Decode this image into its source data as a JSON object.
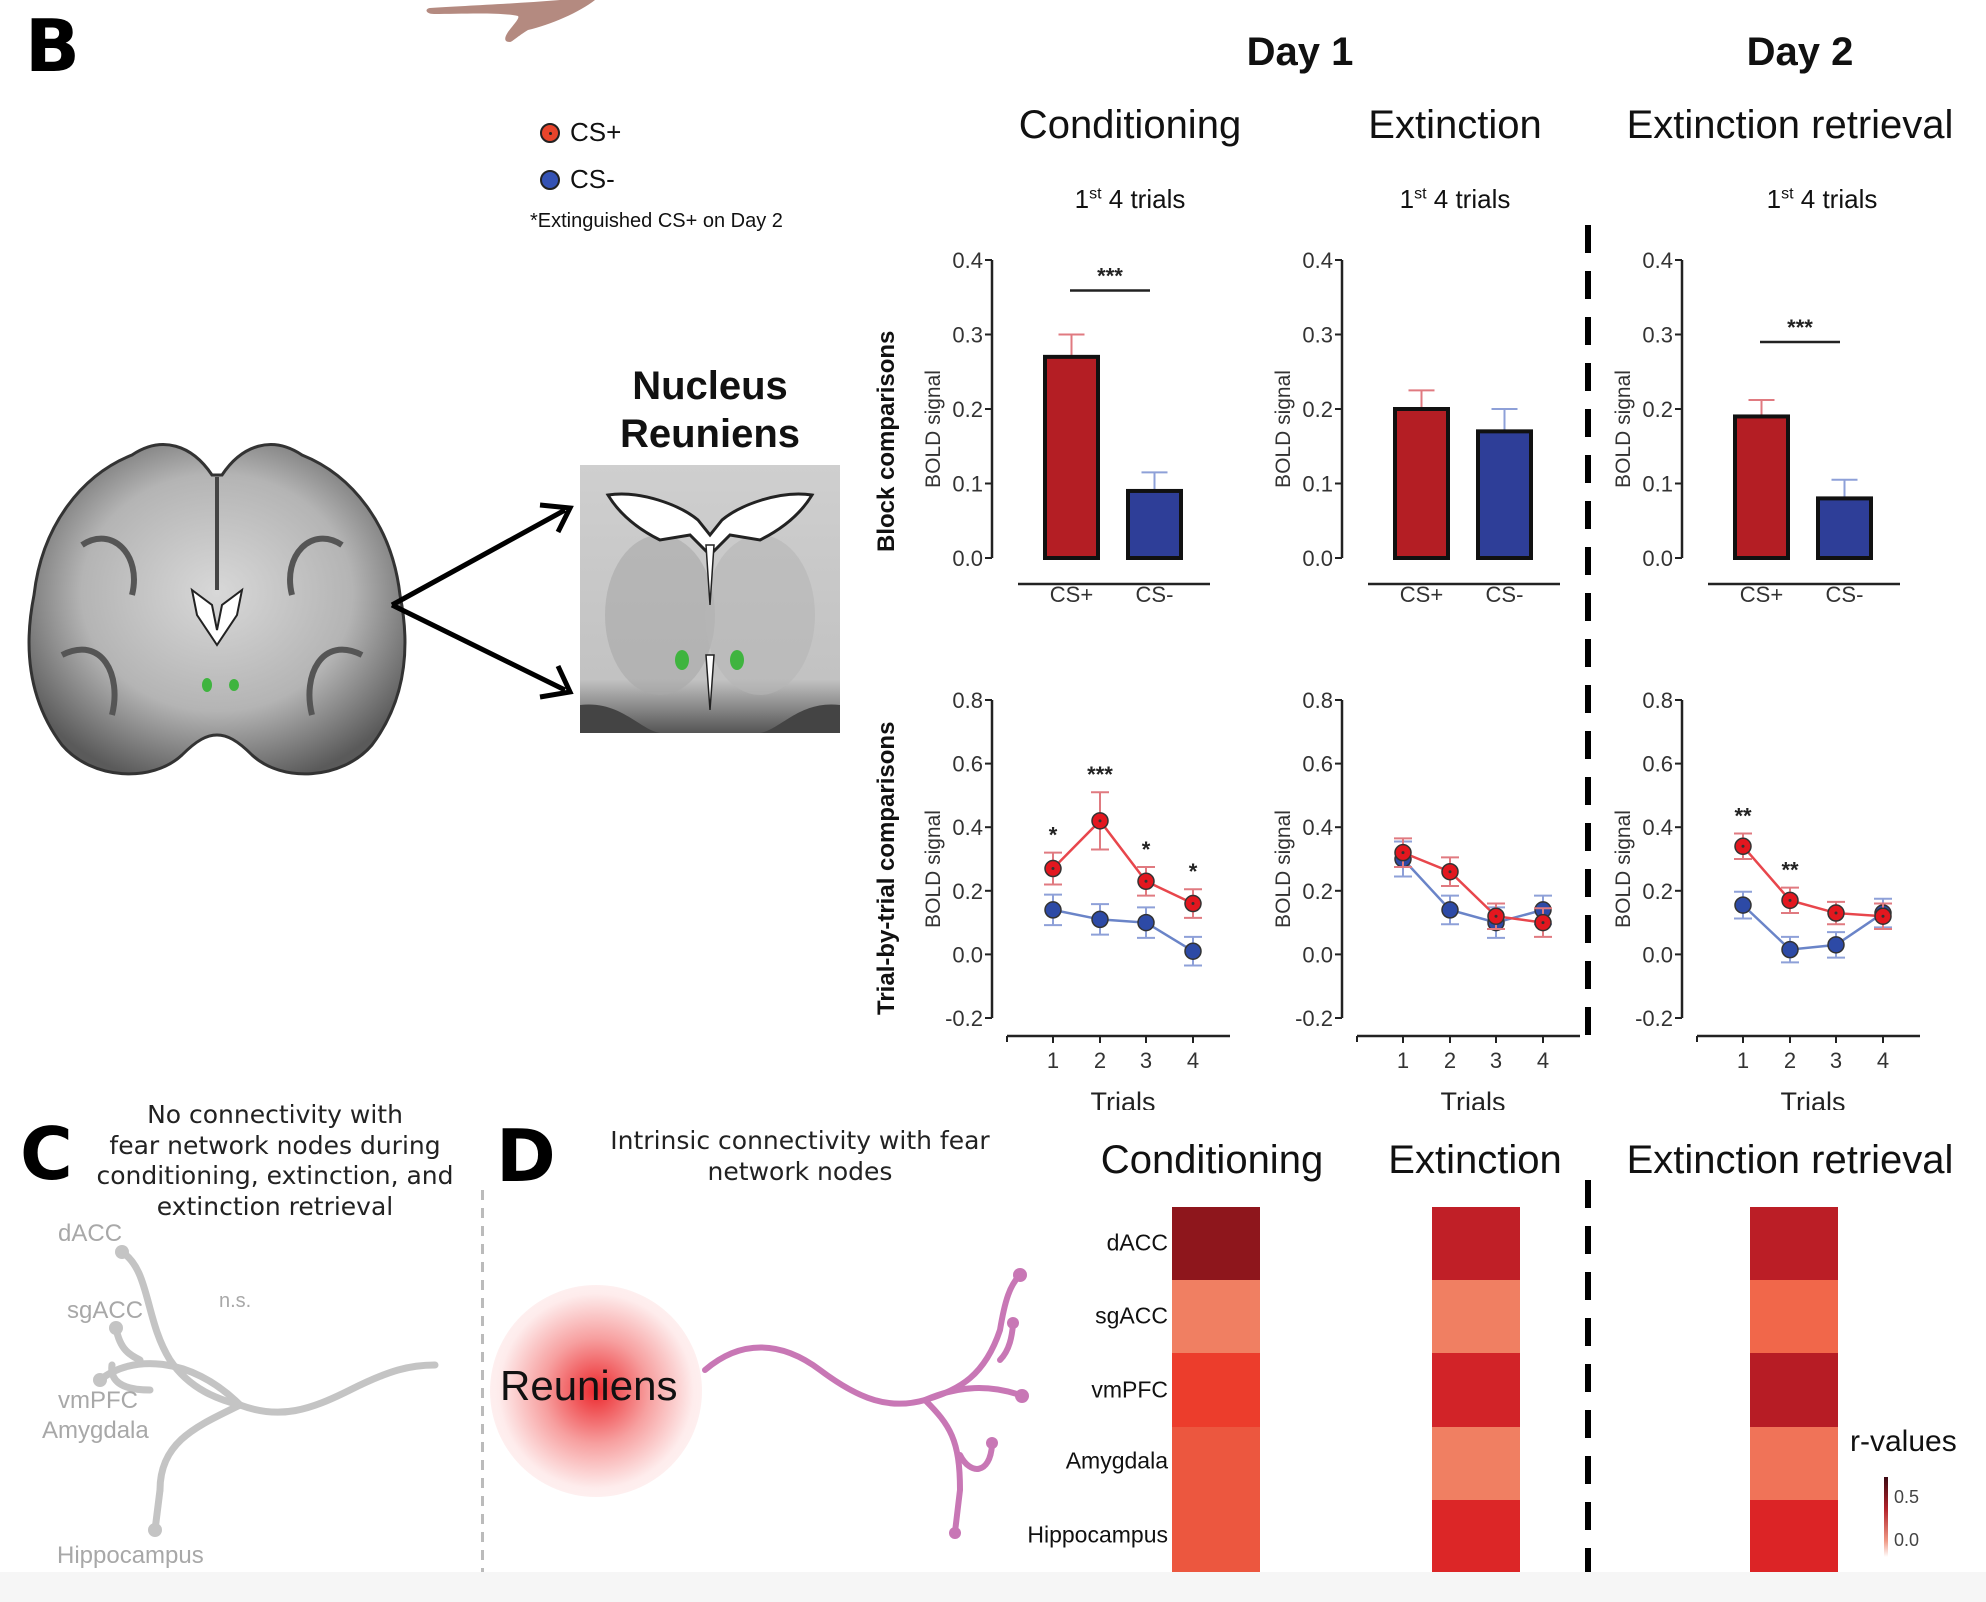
{
  "panel_letters": {
    "b": "B",
    "c": "C",
    "d": "D"
  },
  "header": {
    "day1": "Day 1",
    "day2": "Day 2",
    "phases": [
      "Conditioning",
      "Extinction",
      "Extinction retrieval"
    ],
    "subtitle_sup": "st",
    "subtitle_pre": "1",
    "subtitle_post": " 4 trials"
  },
  "legend": {
    "cs_plus": "CS+",
    "cs_minus": "CS-",
    "note": "*Extinguished CS+ on Day 2",
    "colors": {
      "cs_plus": "#e8242b",
      "cs_minus": "#2f4aa8"
    }
  },
  "brain": {
    "inset_title_line1": "Nucleus",
    "inset_title_line2": "Reuniens"
  },
  "row_labels": {
    "block": "Block comparisons",
    "trial": "Trial-by-trial comparisons"
  },
  "colors": {
    "bar_cs_plus": "#b41e24",
    "bar_cs_minus": "#2e3e98",
    "line_cs_plus": "#e8464c",
    "line_cs_minus": "#6a84c8",
    "pt_cs_plus": "#e3171f",
    "pt_cs_minus": "#2d4aa6",
    "err_cs_plus": "#e07a80",
    "err_cs_minus": "#8ea0d8",
    "connector_purple": "#c877b5",
    "connector_gray": "#c4c4c4"
  },
  "chart_data": [
    {
      "id": "block-conditioning",
      "type": "bar",
      "title": "Conditioning",
      "categories": [
        "CS+",
        "CS-"
      ],
      "values": [
        0.27,
        0.09
      ],
      "errors": [
        0.03,
        0.025
      ],
      "ylabel": "BOLD signal",
      "ylim": [
        0.0,
        0.4
      ],
      "yticks": [
        "0.0",
        "0.1",
        "0.2",
        "0.3",
        "0.4"
      ],
      "yticks_values": [
        0.0,
        0.1,
        0.2,
        0.3,
        0.4
      ],
      "significance": "***"
    },
    {
      "id": "block-extinction",
      "type": "bar",
      "title": "Extinction",
      "categories": [
        "CS+",
        "CS-"
      ],
      "values": [
        0.2,
        0.17
      ],
      "errors": [
        0.025,
        0.03
      ],
      "ylabel": "BOLD signal",
      "ylim": [
        0.0,
        0.4
      ],
      "yticks": [
        "0.0",
        "0.1",
        "0.2",
        "0.3",
        "0.4"
      ],
      "yticks_values": [
        0.0,
        0.1,
        0.2,
        0.3,
        0.4
      ],
      "significance": ""
    },
    {
      "id": "block-retrieval",
      "type": "bar",
      "title": "Extinction retrieval",
      "categories": [
        "CS+",
        "CS-"
      ],
      "values": [
        0.19,
        0.08
      ],
      "errors": [
        0.022,
        0.025
      ],
      "ylabel": "BOLD signal",
      "ylim": [
        0.0,
        0.4
      ],
      "yticks": [
        "0.0",
        "0.1",
        "0.2",
        "0.3",
        "0.4"
      ],
      "yticks_values": [
        0.0,
        0.1,
        0.2,
        0.3,
        0.4
      ],
      "significance": "***"
    },
    {
      "id": "trial-conditioning",
      "type": "line",
      "title": "Conditioning",
      "x": [
        1,
        2,
        3,
        4
      ],
      "xticks": [
        "1",
        "2",
        "3",
        "4"
      ],
      "xlabel": "Trials",
      "ylabel": "BOLD signal",
      "ylim": [
        -0.2,
        0.8
      ],
      "yticks": [
        "-0.2",
        "0.0",
        "0.2",
        "0.4",
        "0.6",
        "0.8"
      ],
      "yticks_values": [
        -0.2,
        0.0,
        0.2,
        0.4,
        0.6,
        0.8
      ],
      "series": [
        {
          "name": "CS+",
          "values": [
            0.27,
            0.42,
            0.23,
            0.16
          ],
          "errors": [
            0.05,
            0.09,
            0.045,
            0.045
          ]
        },
        {
          "name": "CS-",
          "values": [
            0.14,
            0.11,
            0.1,
            0.01
          ],
          "errors": [
            0.048,
            0.048,
            0.048,
            0.045
          ]
        }
      ],
      "annotations": [
        "*",
        "***",
        "*",
        "*"
      ]
    },
    {
      "id": "trial-extinction",
      "type": "line",
      "title": "Extinction",
      "x": [
        1,
        2,
        3,
        4
      ],
      "xticks": [
        "1",
        "2",
        "3",
        "4"
      ],
      "xlabel": "Trials",
      "ylabel": "BOLD signal",
      "ylim": [
        -0.2,
        0.8
      ],
      "yticks": [
        "-0.2",
        "0.0",
        "0.2",
        "0.4",
        "0.6",
        "0.8"
      ],
      "yticks_values": [
        -0.2,
        0.0,
        0.2,
        0.4,
        0.6,
        0.8
      ],
      "series": [
        {
          "name": "CS+",
          "values": [
            0.32,
            0.26,
            0.12,
            0.1
          ],
          "errors": [
            0.045,
            0.045,
            0.04,
            0.045
          ]
        },
        {
          "name": "CS-",
          "values": [
            0.3,
            0.14,
            0.1,
            0.14
          ],
          "errors": [
            0.055,
            0.045,
            0.048,
            0.045
          ]
        }
      ],
      "annotations": [
        "",
        "",
        "",
        ""
      ]
    },
    {
      "id": "trial-retrieval",
      "type": "line",
      "title": "Extinction retrieval",
      "x": [
        1,
        2,
        3,
        4
      ],
      "xticks": [
        "1",
        "2",
        "3",
        "4"
      ],
      "xlabel": "Trials",
      "ylabel": "BOLD signal",
      "ylim": [
        -0.2,
        0.8
      ],
      "yticks": [
        "-0.2",
        "0.0",
        "0.2",
        "0.4",
        "0.6",
        "0.8"
      ],
      "yticks_values": [
        -0.2,
        0.0,
        0.2,
        0.4,
        0.6,
        0.8
      ],
      "series": [
        {
          "name": "CS+",
          "values": [
            0.34,
            0.17,
            0.13,
            0.12
          ],
          "errors": [
            0.04,
            0.04,
            0.035,
            0.04
          ]
        },
        {
          "name": "CS-",
          "values": [
            0.155,
            0.015,
            0.03,
            0.13
          ],
          "errors": [
            0.042,
            0.04,
            0.04,
            0.045
          ]
        }
      ],
      "annotations": [
        "**",
        "**",
        "",
        ""
      ]
    },
    {
      "id": "heatmap-connectivity",
      "type": "heatmap",
      "title": "Intrinsic connectivity with fear network nodes",
      "rows": [
        "dACC",
        "sgACC",
        "vmPFC",
        "Amygdala",
        "Hippocampus"
      ],
      "columns": [
        "Conditioning",
        "Extinction",
        "Extinction retrieval"
      ],
      "values": [
        [
          0.6,
          0.45,
          0.47
        ],
        [
          0.15,
          0.15,
          0.2
        ],
        [
          0.35,
          0.42,
          0.5
        ],
        [
          0.3,
          0.15,
          0.17
        ],
        [
          0.3,
          0.4,
          0.4
        ]
      ],
      "cell_colors": [
        [
          "#8e161c",
          "#c01f27",
          "#bb1e26"
        ],
        [
          "#f07f62",
          "#f07f62",
          "#f1674a"
        ],
        [
          "#ec3d2c",
          "#d22328",
          "#b71c25"
        ],
        [
          "#ec573f",
          "#f07f62",
          "#f07358"
        ],
        [
          "#ec573f",
          "#dc2627",
          "#dc2426"
        ]
      ],
      "colorbar_label": "r-values",
      "colorbar_ticks": [
        "0.5",
        "0.0"
      ]
    }
  ],
  "panel_c": {
    "title_lines": [
      "No connectivity with",
      "fear network nodes during",
      "conditioning, extinction, and",
      "extinction retrieval"
    ],
    "nodes": [
      "dACC",
      "sgACC",
      "vmPFC",
      "Amygdala",
      "Hippocampus"
    ],
    "ns_label": "n.s."
  },
  "panel_d": {
    "title_lines": [
      "Intrinsic connectivity with fear",
      "network nodes"
    ],
    "source_label": "Reuniens"
  }
}
